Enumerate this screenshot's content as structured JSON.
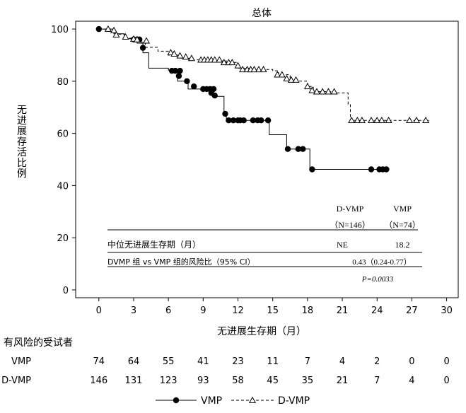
{
  "chart_data": {
    "type": "line",
    "subtype": "kaplan-meier",
    "title": "总体",
    "ylabel": "无进展存活比例",
    "xlabel": "无进展生存期（月）",
    "xlim": [
      -2,
      31
    ],
    "ylim": [
      -3,
      103
    ],
    "xticks": [
      0,
      3,
      6,
      9,
      12,
      15,
      18,
      21,
      24,
      27,
      30
    ],
    "yticks": [
      0,
      20,
      40,
      60,
      80,
      100
    ],
    "grid": false,
    "legend_position": "bottom",
    "series": [
      {
        "name": "VMP",
        "color": "#000000",
        "line_style": "solid",
        "marker": "filled-circle",
        "steps": [
          [
            0,
            100
          ],
          [
            1.3,
            98.2
          ],
          [
            2.2,
            96.3
          ],
          [
            3.3,
            94.6
          ],
          [
            3.8,
            90.9
          ],
          [
            4.3,
            85.0
          ],
          [
            6.0,
            84.2
          ],
          [
            6.8,
            80.0
          ],
          [
            7.7,
            77.0
          ],
          [
            9.1,
            76.5
          ],
          [
            9.9,
            74.2
          ],
          [
            10.8,
            67.5
          ],
          [
            11.0,
            65.0
          ],
          [
            14.7,
            59.5
          ],
          [
            16.2,
            54.0
          ],
          [
            18.2,
            46.2
          ],
          [
            24.8,
            46.2
          ]
        ],
        "censored": [
          [
            0,
            100
          ],
          [
            3.0,
            96.0
          ],
          [
            3.3,
            96.0
          ],
          [
            3.5,
            96.0
          ],
          [
            3.8,
            92.8
          ],
          [
            6.3,
            84.0
          ],
          [
            6.6,
            84.0
          ],
          [
            7.0,
            84.0
          ],
          [
            6.9,
            82.0
          ],
          [
            7.6,
            80.0
          ],
          [
            8.2,
            78.0
          ],
          [
            9.0,
            77.0
          ],
          [
            9.3,
            77.0
          ],
          [
            9.6,
            77.0
          ],
          [
            9.9,
            77.0
          ],
          [
            9.7,
            75.5
          ],
          [
            10.0,
            74.5
          ],
          [
            10.9,
            67.5
          ],
          [
            11.2,
            65.0
          ],
          [
            11.6,
            65.0
          ],
          [
            12.0,
            65.0
          ],
          [
            12.2,
            65.0
          ],
          [
            12.5,
            65.0
          ],
          [
            13.3,
            65.0
          ],
          [
            13.7,
            65.0
          ],
          [
            14.0,
            65.0
          ],
          [
            14.6,
            65.0
          ],
          [
            16.3,
            54.0
          ],
          [
            17.2,
            54.0
          ],
          [
            17.6,
            54.0
          ],
          [
            18.4,
            46.2
          ],
          [
            23.5,
            46.2
          ],
          [
            24.2,
            46.2
          ],
          [
            24.5,
            46.2
          ],
          [
            24.8,
            46.2
          ]
        ]
      },
      {
        "name": "D-VMP",
        "color": "#000000",
        "line_style": "dashed",
        "marker": "open-triangle",
        "steps": [
          [
            0,
            100
          ],
          [
            1.0,
            99.3
          ],
          [
            1.5,
            98.0
          ],
          [
            2.2,
            96.5
          ],
          [
            3.1,
            95.0
          ],
          [
            4.0,
            93.0
          ],
          [
            5.1,
            91.5
          ],
          [
            6.0,
            90.0
          ],
          [
            7.1,
            88.8
          ],
          [
            8.0,
            88.2
          ],
          [
            9.0,
            87.8
          ],
          [
            11.0,
            87.2
          ],
          [
            12.0,
            85.0
          ],
          [
            13.0,
            84.5
          ],
          [
            15.0,
            84.0
          ],
          [
            15.5,
            82.5
          ],
          [
            16.5,
            80.0
          ],
          [
            18.0,
            78.0
          ],
          [
            18.5,
            76.0
          ],
          [
            20.5,
            75.5
          ],
          [
            21.5,
            71.0
          ],
          [
            21.7,
            65.0
          ],
          [
            28.5,
            65.0
          ]
        ],
        "censored": [
          [
            0.8,
            100
          ],
          [
            1.3,
            99.5
          ],
          [
            1.5,
            97.8
          ],
          [
            2.3,
            97.0
          ],
          [
            3.0,
            96.2
          ],
          [
            3.3,
            96.0
          ],
          [
            4.1,
            95.5
          ],
          [
            6.2,
            91.0
          ],
          [
            6.5,
            90.5
          ],
          [
            7.0,
            89.8
          ],
          [
            7.5,
            89.3
          ],
          [
            8.0,
            88.8
          ],
          [
            8.8,
            88.2
          ],
          [
            9.1,
            88.2
          ],
          [
            9.4,
            88.2
          ],
          [
            9.7,
            88.2
          ],
          [
            10.0,
            88.2
          ],
          [
            10.4,
            88.2
          ],
          [
            10.8,
            87.2
          ],
          [
            11.2,
            87.2
          ],
          [
            11.5,
            87.2
          ],
          [
            12.0,
            86.0
          ],
          [
            12.4,
            84.5
          ],
          [
            12.8,
            84.5
          ],
          [
            13.1,
            84.5
          ],
          [
            13.4,
            84.5
          ],
          [
            13.8,
            84.5
          ],
          [
            14.2,
            84.5
          ],
          [
            15.4,
            82.5
          ],
          [
            15.8,
            82.5
          ],
          [
            16.2,
            81.0
          ],
          [
            16.6,
            80.5
          ],
          [
            17.0,
            80.5
          ],
          [
            18.0,
            78.0
          ],
          [
            18.4,
            76.5
          ],
          [
            18.8,
            76.0
          ],
          [
            19.3,
            76.0
          ],
          [
            19.8,
            76.0
          ],
          [
            20.3,
            76.0
          ],
          [
            21.8,
            65.0
          ],
          [
            22.3,
            65.0
          ],
          [
            22.7,
            65.0
          ],
          [
            23.5,
            65.0
          ],
          [
            24.0,
            65.0
          ],
          [
            24.4,
            65.0
          ],
          [
            25.0,
            65.0
          ],
          [
            26.8,
            65.0
          ],
          [
            27.4,
            65.0
          ],
          [
            28.2,
            65.0
          ]
        ]
      }
    ],
    "inset_table": {
      "headers": [
        "D-VMP",
        "VMP"
      ],
      "n_row": [
        "（N=146）",
        "（N=74）"
      ],
      "rows": [
        {
          "label": "中位无进展生存期（月）",
          "dvmp": "NE",
          "vmp": "18.2"
        },
        {
          "label": "DVMP 组  vs VMP 组的风险比（95% CI）",
          "value": "0.43（0.24-0.77）"
        }
      ],
      "p_value": "P=0.0033"
    },
    "risk_table": {
      "title": "有风险的受试者",
      "timepoints": [
        0,
        3,
        6,
        9,
        12,
        15,
        18,
        21,
        24,
        27,
        30
      ],
      "rows": [
        {
          "label": "VMP",
          "values": [
            "74",
            "64",
            "55",
            "41",
            "23",
            "11",
            "7",
            "4",
            "2",
            "0",
            "0"
          ]
        },
        {
          "label": "D-VMP",
          "values": [
            "146",
            "131",
            "123",
            "93",
            "58",
            "45",
            "35",
            "21",
            "7",
            "4",
            "0"
          ]
        }
      ]
    },
    "legend": [
      {
        "label": "VMP",
        "style": "solid-filled-circle"
      },
      {
        "label": "D-VMP",
        "style": "dashed-open-triangle"
      }
    ]
  }
}
